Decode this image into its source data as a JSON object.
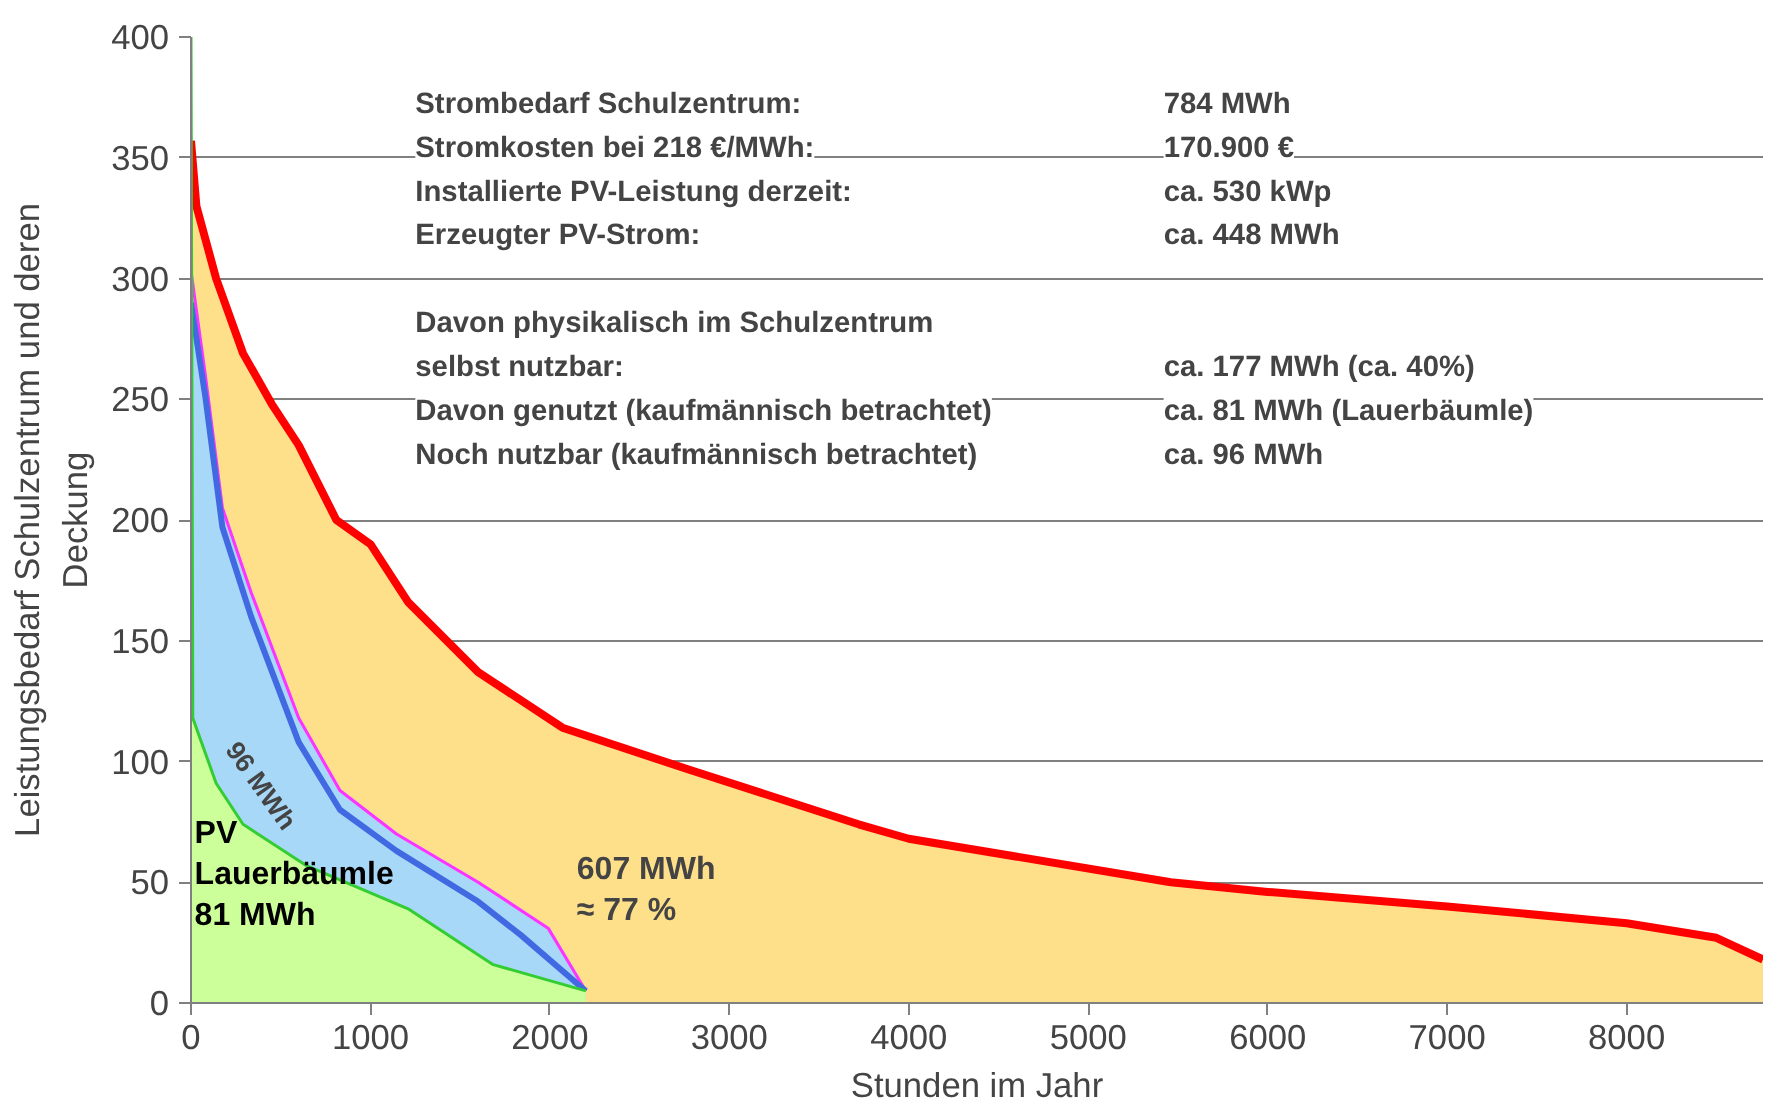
{
  "chart_data": {
    "type": "line",
    "xlabel": "Stunden im Jahr",
    "ylabel": "Leistungsbedarf Schulzentrum und deren\nDeckung",
    "xlim": [
      0,
      8760
    ],
    "ylim": [
      0,
      400
    ],
    "xticks": [
      0,
      1000,
      2000,
      3000,
      4000,
      5000,
      6000,
      7000,
      8000
    ],
    "yticks": [
      0,
      50,
      100,
      150,
      200,
      250,
      300,
      350,
      400
    ],
    "grid": "y",
    "legend": false,
    "series": [
      {
        "type": "area",
        "color": "#ff0000",
        "colors": [
          "#ffe08a",
          "#ffe08a",
          "#ffe08a",
          "#ffe08a",
          "#ffe08a",
          "#ffe08a",
          "#ffe08a",
          "#ffe08a",
          "#ffe08a",
          "#ffe08a",
          "#ffe08a",
          "#ffe08a",
          "#ffe08a",
          "#ffe08a",
          "#ffe08a",
          "#ffe08a",
          "#ffe08a",
          "#ffe08a",
          "#ffe08a",
          "#ffe08a"
        ],
        "x": [
          0,
          30,
          140,
          290,
          450,
          600,
          810,
          1000,
          1210,
          1600,
          2070,
          2760,
          3720,
          4000,
          5460,
          6000,
          7000,
          8000,
          8500,
          8760
        ],
        "values": [
          357,
          330,
          300,
          269,
          248,
          231,
          200,
          190,
          166,
          137,
          114,
          97,
          74,
          68,
          50,
          46,
          40,
          33,
          27,
          18
        ]
      },
      {
        "type": "area",
        "color": "#a8d8f8",
        "colors": [
          "#a8d8f8",
          "#a8d8f8",
          "#a8d8f8",
          "#a8d8f8",
          "#a8d8f8",
          "#a8d8f8",
          "#a8d8f8",
          "#a8d8f8",
          "#a8d8f8",
          "#a8d8f8"
        ],
        "x": [
          0,
          80,
          175,
          335,
          600,
          830,
          1145,
          1600,
          1990,
          2200
        ],
        "values": [
          303,
          260,
          205,
          170,
          118,
          88,
          70,
          50,
          31,
          5
        ]
      },
      {
        "color": "#4169e1",
        "x": [
          0,
          80,
          175,
          335,
          600,
          830,
          1145,
          1600,
          1840,
          2200
        ],
        "values": [
          290,
          251,
          197,
          160,
          108,
          80,
          63,
          42,
          28,
          5
        ]
      },
      {
        "type": "area",
        "color": "#33cc33",
        "colors": [
          "#ccff99",
          "#ccff99",
          "#ccff99",
          "#ccff99",
          "#ccff99",
          "#ccff99",
          "#ccff99",
          "#ccff99"
        ],
        "x": [
          0,
          10,
          140,
          290,
          640,
          1210,
          1680,
          2200
        ],
        "values": [
          400,
          118,
          91,
          74,
          57,
          39,
          16,
          5
        ]
      },
      {
        "color": "#ff33ff",
        "x": [
          0,
          80,
          175,
          335,
          600,
          830,
          1145,
          1600,
          1990,
          2200
        ],
        "values": [
          303,
          260,
          205,
          170,
          118,
          88,
          70,
          50,
          31,
          5
        ]
      }
    ],
    "annotations": [
      "Strombedarf Schulzentrum:",
      "784 MWh",
      "Stromkosten bei 218 €/MWh:",
      "170.900 €",
      "Installierte PV-Leistung derzeit:",
      "ca. 530 kWp",
      "Erzeugter PV-Strom:",
      "ca. 448 MWh",
      "Davon physikalisch im Schulzentrum",
      "selbst nutzbar:",
      "ca. 177 MWh (ca. 40%)",
      "Davon genutzt (kaufmännisch betrachtet)",
      "ca. 81 MWh (Lauerbäumle)",
      "Noch nutzbar (kaufmännisch betrachtet)",
      "ca. 96 MWh",
      "96 MWh",
      "607 MWh\n≈ 77 %",
      {
        "text": "PV\nLauerbäumle\n81 MWh",
        "x": 20,
        "y": 53
      }
    ]
  }
}
